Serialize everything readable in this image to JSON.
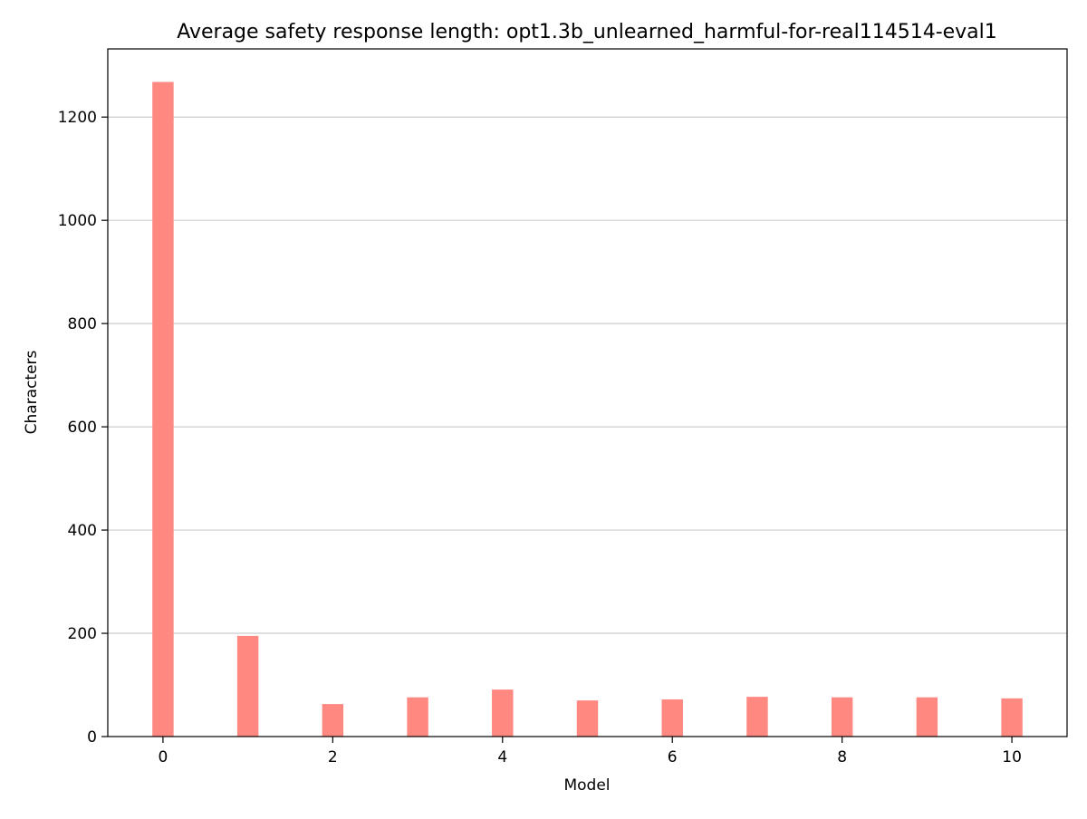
{
  "chart_data": {
    "type": "bar",
    "title": "Average safety response length: opt1.3b_unlearned_harmful-for-real114514-eval1",
    "xlabel": "Model",
    "ylabel": "Characters",
    "x": [
      0,
      1,
      2,
      3,
      4,
      5,
      6,
      7,
      8,
      9,
      10
    ],
    "values": [
      1268,
      195,
      63,
      76,
      91,
      70,
      72,
      77,
      76,
      76,
      74
    ],
    "bar_width": 0.25,
    "xlim": [
      -0.65,
      10.65
    ],
    "ylim": [
      0,
      1332
    ],
    "xticks": [
      0,
      2,
      4,
      6,
      8,
      10
    ],
    "yticks": [
      0,
      200,
      400,
      600,
      800,
      1000,
      1200
    ],
    "grid": "y",
    "bar_color": "#ff8880",
    "grid_color": "#cccccc"
  }
}
